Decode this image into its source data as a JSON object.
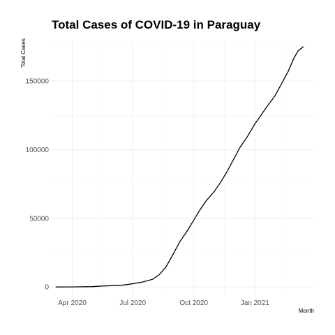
{
  "chart_data": {
    "type": "line",
    "title": "Total Cases of COVID-19 in Paraguay",
    "xlabel": "Month",
    "ylabel": "Total Cases",
    "x_ticks": [
      "2020-04-01",
      "2020-07-01",
      "2020-10-01",
      "2021-01-01"
    ],
    "x_tick_labels": [
      "Apr 2020",
      "Jul 2020",
      "Oct 2020",
      "Jan 2021"
    ],
    "y_ticks": [
      0,
      50000,
      100000,
      150000
    ],
    "y_tick_labels": [
      "0",
      "50000",
      "100000",
      "150000"
    ],
    "xlim": [
      "2020-03-01",
      "2021-03-31"
    ],
    "ylim": [
      -7000,
      180000
    ],
    "grid": true,
    "series": [
      {
        "color": "#000000",
        "x": [
          "2020-03-07",
          "2020-03-31",
          "2020-04-30",
          "2020-05-15",
          "2020-05-31",
          "2020-06-15",
          "2020-06-30",
          "2020-07-15",
          "2020-07-31",
          "2020-08-10",
          "2020-08-20",
          "2020-08-31",
          "2020-09-10",
          "2020-09-20",
          "2020-09-30",
          "2020-10-10",
          "2020-10-20",
          "2020-10-31",
          "2020-11-10",
          "2020-11-20",
          "2020-11-30",
          "2020-12-10",
          "2020-12-20",
          "2020-12-31",
          "2021-01-10",
          "2021-01-20",
          "2021-01-31",
          "2021-02-10",
          "2021-02-20",
          "2021-02-28",
          "2021-03-07",
          "2021-03-15"
        ],
        "y": [
          0,
          65,
          240,
          720,
          960,
          1300,
          2300,
          3500,
          5600,
          9000,
          14500,
          24000,
          33000,
          40000,
          48000,
          56000,
          63000,
          69000,
          76000,
          84000,
          93000,
          102000,
          109000,
          118000,
          125000,
          132000,
          139000,
          148000,
          157000,
          166000,
          172000,
          175000
        ]
      }
    ]
  }
}
